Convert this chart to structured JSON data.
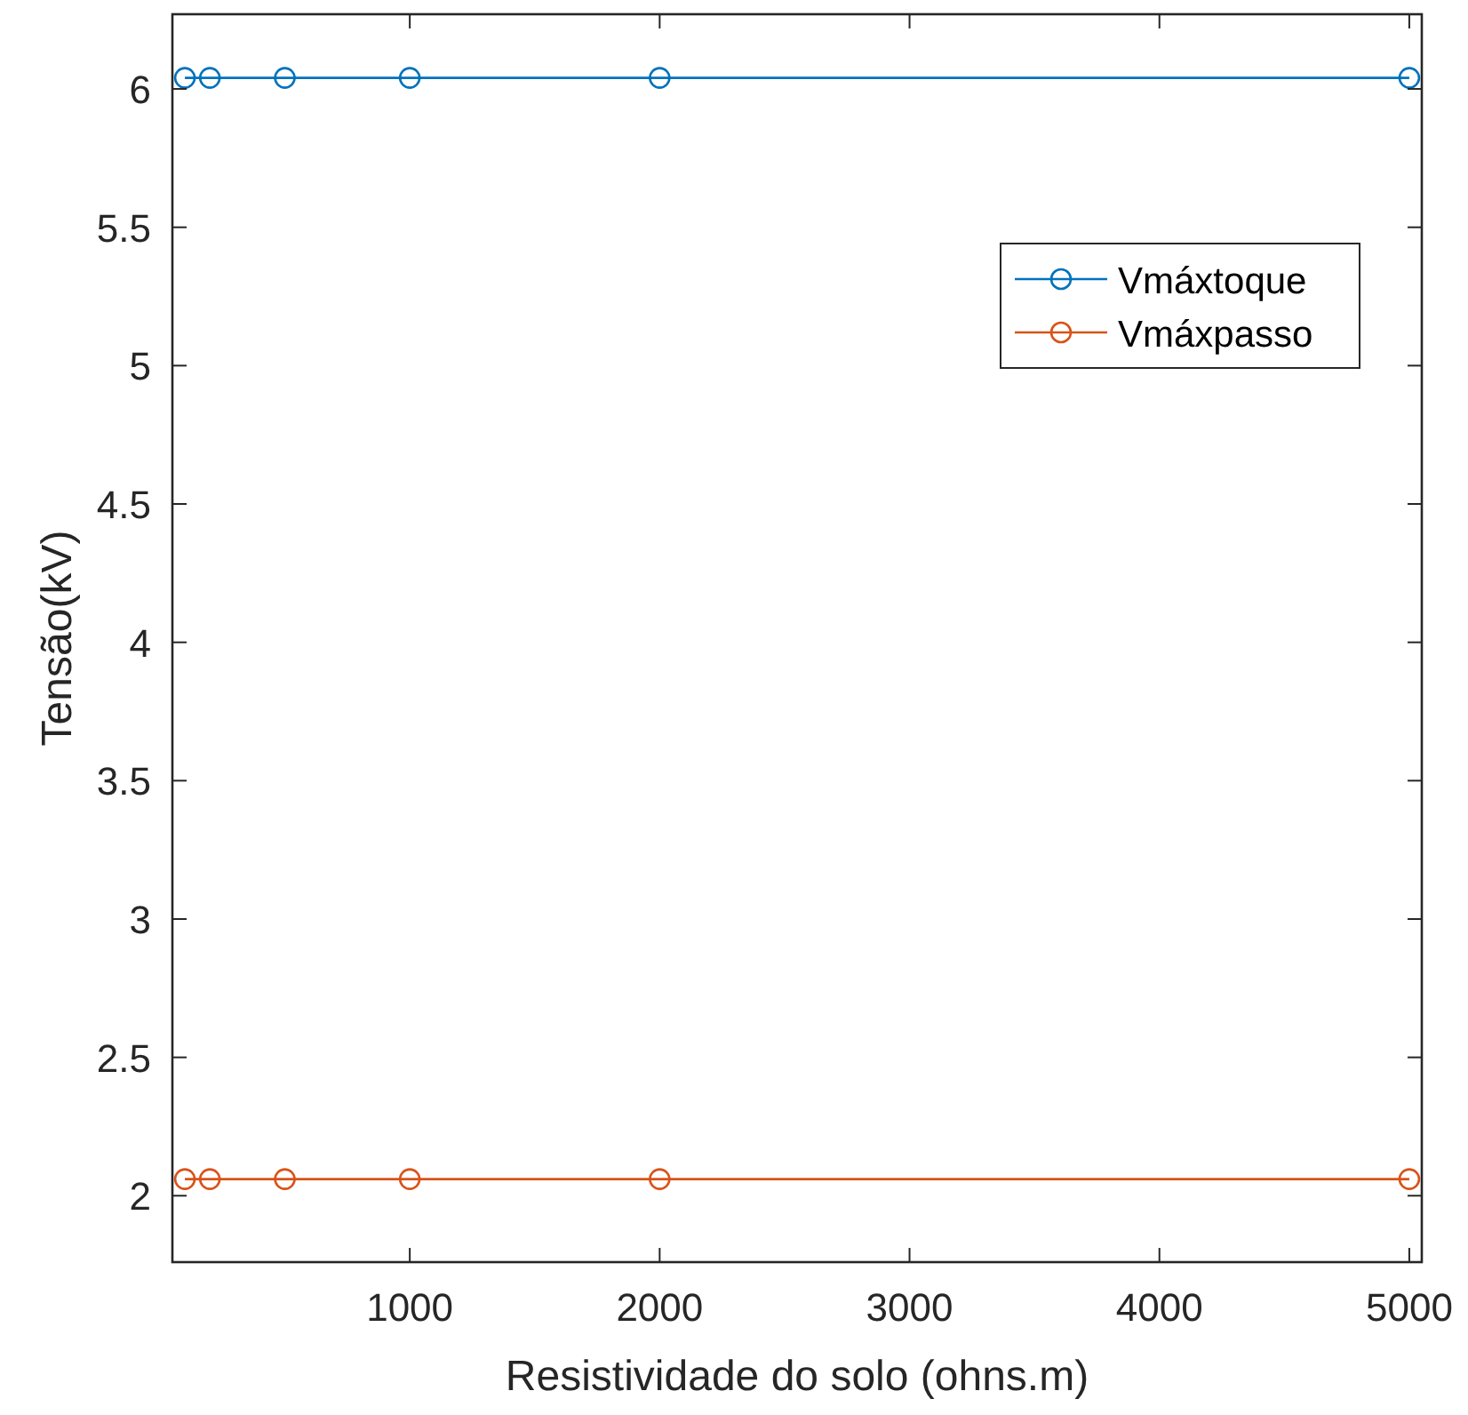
{
  "chart_data": {
    "type": "line",
    "xlabel": "Resistividade do solo (ohns.m)",
    "ylabel": "Tensão(kV)",
    "x": [
      100,
      200,
      500,
      1000,
      2000,
      5000
    ],
    "series": [
      {
        "name": "Vmáxtoque",
        "color": "#0072bd",
        "values": [
          6.04,
          6.04,
          6.04,
          6.04,
          6.04,
          6.04
        ]
      },
      {
        "name": "Vmáxpasso",
        "color": "#d95319",
        "values": [
          2.06,
          2.06,
          2.06,
          2.06,
          2.06,
          2.06
        ]
      }
    ],
    "xlim": [
      50,
      5050
    ],
    "xticks": [
      1000,
      2000,
      3000,
      4000,
      5000
    ],
    "ylim": [
      1.76,
      6.27
    ],
    "yticks": [
      2,
      2.5,
      3,
      3.5,
      4,
      4.5,
      5,
      5.5,
      6
    ],
    "marker": "circle",
    "line_style": "solid",
    "legend": "top right",
    "grid": false
  }
}
